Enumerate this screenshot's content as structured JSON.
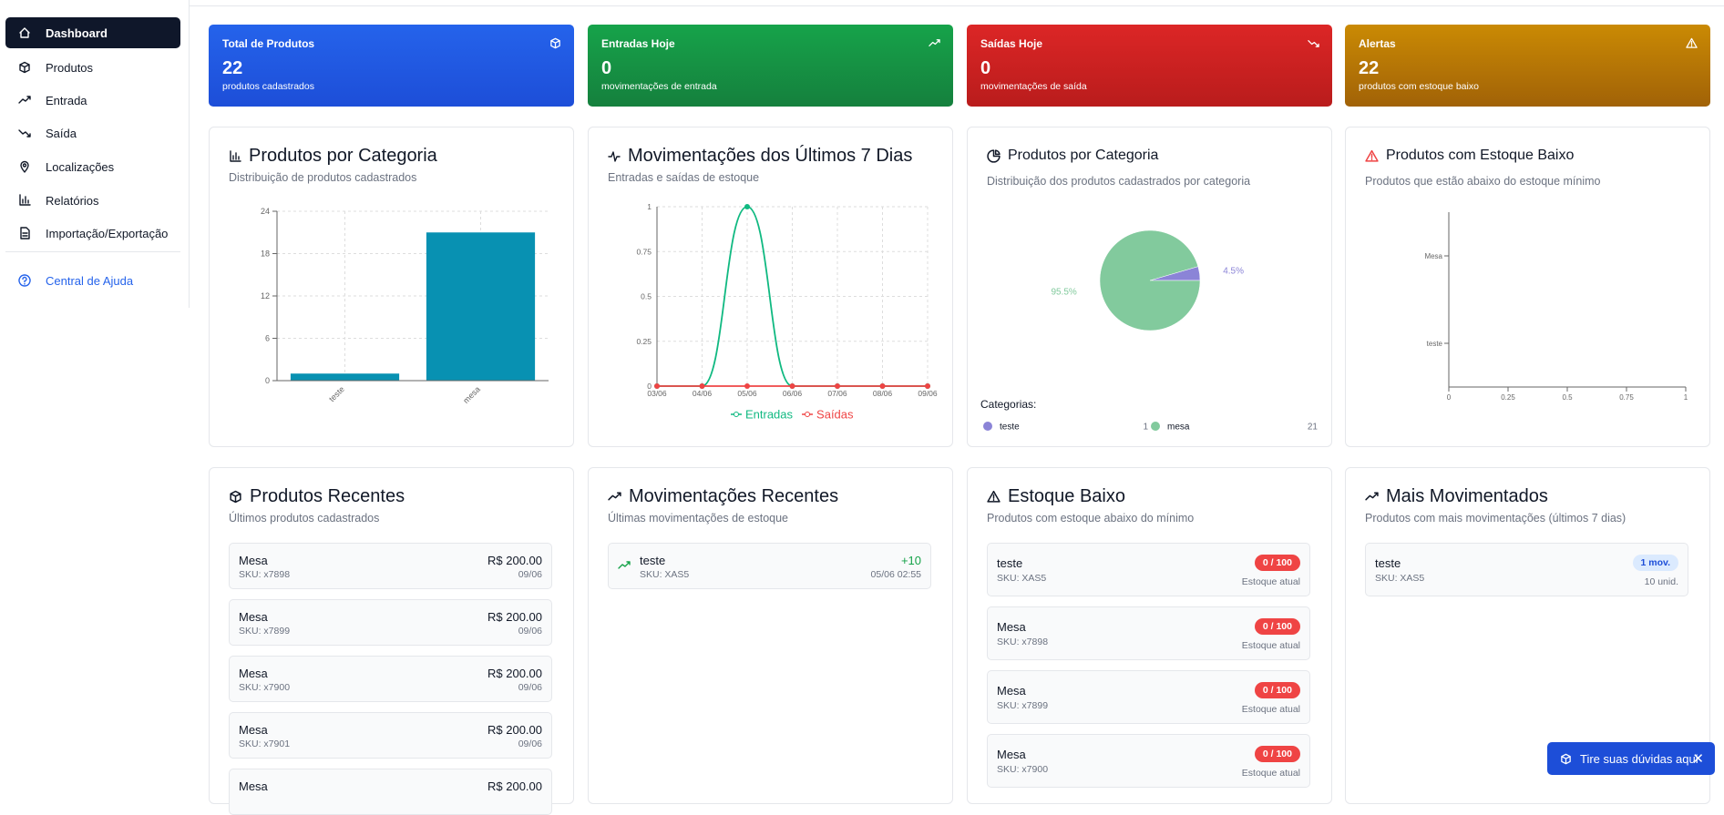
{
  "sidebar": {
    "items": [
      "Dashboard",
      "Produtos",
      "Entrada",
      "Saída",
      "Localizações",
      "Relatórios",
      "Importação/Exportação"
    ],
    "help": "Central de Ajuda"
  },
  "stat_cards": [
    {
      "title": "Total de Produtos",
      "value": 22,
      "subtitle": "produtos cadastrados"
    },
    {
      "title": "Entradas Hoje",
      "value": 0,
      "subtitle": "movimentações de entrada"
    },
    {
      "title": "Saídas Hoje",
      "value": 0,
      "subtitle": "movimentações de saída"
    },
    {
      "title": "Alertas",
      "value": 22,
      "subtitle": "produtos com estoque baixo"
    }
  ],
  "chart_data": [
    {
      "type": "bar",
      "title": "Produtos por Categoria",
      "subtitle": "Distribuição de produtos cadastrados",
      "categories": [
        "teste",
        "mesa"
      ],
      "values": [
        1,
        21
      ],
      "color": "#0891b2",
      "ylim": [
        0,
        24
      ],
      "yticks": [
        0,
        6,
        12,
        18,
        24
      ],
      "grid": true
    },
    {
      "type": "line",
      "title": "Movimentações dos Últimos 7 Dias",
      "subtitle": "Entradas e saídas de estoque",
      "categories": [
        "03/06",
        "04/06",
        "05/06",
        "06/06",
        "07/06",
        "08/06",
        "09/06"
      ],
      "series": [
        {
          "name": "Entradas",
          "color": "#10b981",
          "values": [
            0,
            0,
            1,
            0,
            0,
            0,
            0
          ]
        },
        {
          "name": "Saídas",
          "color": "#ef4444",
          "values": [
            0,
            0,
            0,
            0,
            0,
            0,
            0
          ]
        }
      ],
      "ylim": [
        0,
        1
      ],
      "yticks": [
        0,
        0.25,
        0.5,
        0.75,
        1
      ],
      "grid": true
    },
    {
      "type": "pie",
      "title": "Produtos por Categoria",
      "subtitle": "Distribuição dos produtos cadastrados por categoria",
      "categories": [
        "teste",
        "mesa"
      ],
      "values": [
        4.5,
        95.5
      ],
      "value_labels": [
        "4.5%",
        "95.5%"
      ],
      "colors": [
        "#8b84d7",
        "#82ca9d"
      ],
      "legend_title": "Categorias:",
      "counts": [
        1,
        21
      ]
    },
    {
      "type": "hbar",
      "title": "Produtos com Estoque Baixo",
      "subtitle": "Produtos que estão abaixo do estoque mínimo",
      "categories": [
        "Mesa",
        "teste"
      ],
      "values": [
        0,
        0
      ],
      "color": "#ef4444",
      "xlim": [
        0,
        1
      ],
      "xticks": [
        0,
        0.25,
        0.5,
        0.75,
        1
      ]
    }
  ],
  "recent_products": {
    "title": "Produtos Recentes",
    "subtitle": "Últimos produtos cadastrados",
    "items": [
      {
        "name": "Mesa",
        "sku": "SKU: x7898",
        "price": "R$ 200.00",
        "date": "09/06"
      },
      {
        "name": "Mesa",
        "sku": "SKU: x7899",
        "price": "R$ 200.00",
        "date": "09/06"
      },
      {
        "name": "Mesa",
        "sku": "SKU: x7900",
        "price": "R$ 200.00",
        "date": "09/06"
      },
      {
        "name": "Mesa",
        "sku": "SKU: x7901",
        "price": "R$ 200.00",
        "date": "09/06"
      },
      {
        "name": "Mesa",
        "price": "R$ 200.00"
      }
    ]
  },
  "recent_movements": {
    "title": "Movimentações Recentes",
    "subtitle": "Últimas movimentações de estoque",
    "items": [
      {
        "name": "teste",
        "sku": "SKU: XAS5",
        "qty": "+10",
        "date": "05/06 02:55"
      }
    ]
  },
  "low_stock": {
    "title": "Estoque Baixo",
    "subtitle": "Produtos com estoque abaixo do mínimo",
    "items": [
      {
        "name": "teste",
        "sku": "SKU: XAS5",
        "badge": "0 / 100",
        "note": "Estoque atual"
      },
      {
        "name": "Mesa",
        "sku": "SKU: x7898",
        "badge": "0 / 100",
        "note": "Estoque atual"
      },
      {
        "name": "Mesa",
        "sku": "SKU: x7899",
        "badge": "0 / 100",
        "note": "Estoque atual"
      },
      {
        "name": "Mesa",
        "sku": "SKU: x7900",
        "badge": "0 / 100",
        "note": "Estoque atual"
      }
    ]
  },
  "most_moved": {
    "title": "Mais Movimentados",
    "subtitle": "Produtos com mais movimentações (últimos 7 dias)",
    "items": [
      {
        "name": "teste",
        "sku": "SKU: XAS5",
        "badge": "1 mov.",
        "units": "10 unid."
      }
    ]
  },
  "help_button": "Tire suas dúvidas aqui"
}
